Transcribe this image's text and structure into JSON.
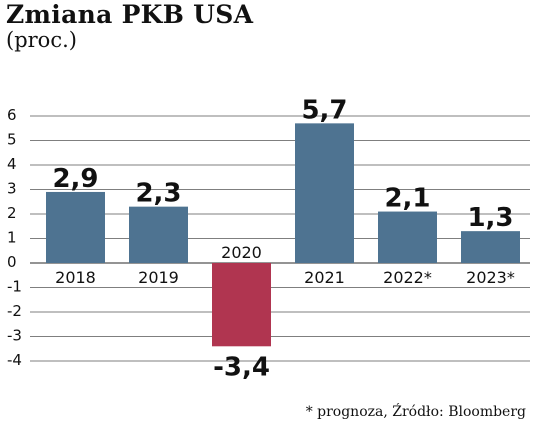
{
  "header": {
    "title": "Zmiana PKB USA",
    "subtitle": "(proc.)"
  },
  "footnote": "* prognoza, Źródło: Bloomberg",
  "colors": {
    "positive": "#4e7391",
    "negative": "#b03550",
    "gridline": "#555555",
    "text": "#111111"
  },
  "chart_data": {
    "type": "bar",
    "categories": [
      "2018",
      "2019",
      "2020",
      "2021",
      "2022*",
      "2023*"
    ],
    "values": [
      2.9,
      2.3,
      -3.4,
      5.7,
      2.1,
      1.3
    ],
    "value_labels": [
      "2,9",
      "2,3",
      "-3,4",
      "5,7",
      "2,1",
      "1,3"
    ],
    "ylim": [
      -4,
      6
    ],
    "yticks": [
      6,
      5,
      4,
      3,
      2,
      1,
      0,
      -1,
      -2,
      -3,
      -4
    ],
    "ytick_labels": [
      "6",
      "5",
      "4",
      "3",
      "2",
      "1",
      "0",
      "-1",
      "-2",
      "-3",
      "-4"
    ],
    "grid": true
  }
}
